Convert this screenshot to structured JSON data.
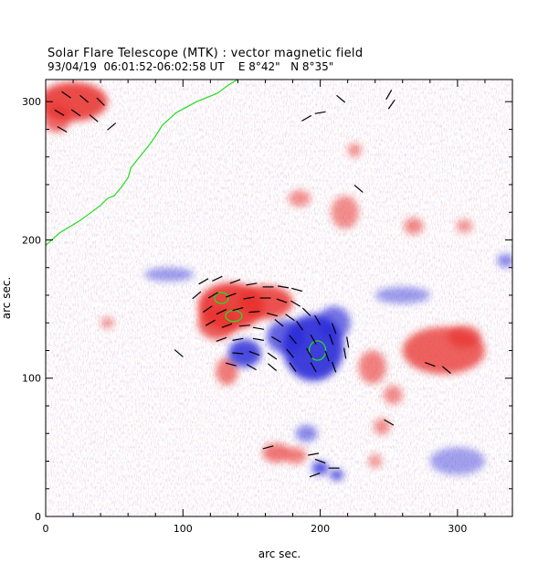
{
  "chart_data": {
    "type": "heatmap",
    "title": "Solar Flare Telescope (MTK) : vector magnetic field",
    "subtitle": "93/04/19  06:01:52-06:02:58 UT    E 8°42\"   N 8°35\"",
    "xlabel": "arc sec.",
    "ylabel": "arc sec.",
    "xlim": [
      0,
      340
    ],
    "ylim": [
      0,
      316
    ],
    "xticks": [
      0,
      100,
      200,
      300
    ],
    "yticks": [
      0,
      100,
      200,
      300
    ],
    "colors": {
      "positive": "#e8322e",
      "negative": "#2a2ad8",
      "contour": "#22dd22",
      "background": "#ffffff"
    },
    "positive_regions": [
      {
        "x": 135,
        "y": 152,
        "rx": 24,
        "ry": 17,
        "level": 1.0
      },
      {
        "x": 160,
        "y": 155,
        "rx": 20,
        "ry": 12,
        "level": 0.9
      },
      {
        "x": 125,
        "y": 140,
        "rx": 14,
        "ry": 12,
        "level": 0.8
      },
      {
        "x": 290,
        "y": 120,
        "rx": 30,
        "ry": 17,
        "level": 0.75
      },
      {
        "x": 305,
        "y": 130,
        "rx": 12,
        "ry": 8,
        "level": 0.6
      },
      {
        "x": 20,
        "y": 300,
        "rx": 25,
        "ry": 14,
        "level": 0.95
      },
      {
        "x": 8,
        "y": 288,
        "rx": 10,
        "ry": 10,
        "level": 0.7
      },
      {
        "x": 132,
        "y": 105,
        "rx": 8,
        "ry": 10,
        "level": 0.5
      },
      {
        "x": 238,
        "y": 108,
        "rx": 10,
        "ry": 12,
        "level": 0.45
      },
      {
        "x": 253,
        "y": 88,
        "rx": 7,
        "ry": 7,
        "level": 0.35
      },
      {
        "x": 245,
        "y": 65,
        "rx": 6,
        "ry": 6,
        "level": 0.35
      },
      {
        "x": 168,
        "y": 46,
        "rx": 10,
        "ry": 7,
        "level": 0.55
      },
      {
        "x": 182,
        "y": 44,
        "rx": 8,
        "ry": 6,
        "level": 0.45
      },
      {
        "x": 218,
        "y": 220,
        "rx": 10,
        "ry": 12,
        "level": 0.35
      },
      {
        "x": 268,
        "y": 210,
        "rx": 7,
        "ry": 6,
        "level": 0.4
      },
      {
        "x": 185,
        "y": 230,
        "rx": 8,
        "ry": 6,
        "level": 0.3
      },
      {
        "x": 225,
        "y": 265,
        "rx": 5,
        "ry": 5,
        "level": 0.3
      },
      {
        "x": 305,
        "y": 210,
        "rx": 6,
        "ry": 5,
        "level": 0.25
      },
      {
        "x": 45,
        "y": 140,
        "rx": 5,
        "ry": 4,
        "level": 0.25
      },
      {
        "x": 240,
        "y": 40,
        "rx": 5,
        "ry": 5,
        "level": 0.25
      }
    ],
    "negative_regions": [
      {
        "x": 195,
        "y": 122,
        "rx": 22,
        "ry": 24,
        "level": 1.0
      },
      {
        "x": 175,
        "y": 130,
        "rx": 14,
        "ry": 12,
        "level": 0.7
      },
      {
        "x": 210,
        "y": 140,
        "rx": 12,
        "ry": 12,
        "level": 0.55
      },
      {
        "x": 145,
        "y": 118,
        "rx": 12,
        "ry": 10,
        "level": 0.9
      },
      {
        "x": 200,
        "y": 35,
        "rx": 6,
        "ry": 5,
        "level": 0.8
      },
      {
        "x": 212,
        "y": 30,
        "rx": 5,
        "ry": 4,
        "level": 0.75
      },
      {
        "x": 190,
        "y": 60,
        "rx": 8,
        "ry": 6,
        "level": 0.35
      },
      {
        "x": 335,
        "y": 185,
        "rx": 6,
        "ry": 5,
        "level": 0.35
      },
      {
        "x": 90,
        "y": 175,
        "rx": 18,
        "ry": 5,
        "level": 0.2
      },
      {
        "x": 260,
        "y": 160,
        "rx": 20,
        "ry": 6,
        "level": 0.2
      },
      {
        "x": 300,
        "y": 40,
        "rx": 20,
        "ry": 10,
        "level": 0.15
      }
    ],
    "contours": [
      {
        "polarity": "positive",
        "x": 128,
        "y": 158,
        "rx": 5,
        "ry": 4
      },
      {
        "polarity": "positive",
        "x": 137,
        "y": 145,
        "rx": 6,
        "ry": 4
      },
      {
        "polarity": "negative",
        "x": 198,
        "y": 120,
        "rx": 6,
        "ry": 7
      },
      {
        "polarity": "limb",
        "points": [
          [
            0,
            196
          ],
          [
            10,
            205
          ],
          [
            25,
            214
          ],
          [
            40,
            225
          ],
          [
            45,
            230
          ],
          [
            50,
            232
          ],
          [
            55,
            238
          ],
          [
            60,
            245
          ],
          [
            62,
            252
          ],
          [
            70,
            262
          ],
          [
            75,
            268
          ],
          [
            80,
            275
          ],
          [
            85,
            283
          ],
          [
            95,
            292
          ],
          [
            110,
            300
          ],
          [
            125,
            306
          ],
          [
            133,
            312
          ],
          [
            140,
            316
          ]
        ]
      }
    ],
    "transverse_field": [
      [
        115,
        170,
        30
      ],
      [
        125,
        172,
        25
      ],
      [
        138,
        170,
        20
      ],
      [
        150,
        168,
        10
      ],
      [
        162,
        166,
        0
      ],
      [
        173,
        166,
        -10
      ],
      [
        183,
        164,
        -15
      ],
      [
        110,
        160,
        40
      ],
      [
        122,
        160,
        30
      ],
      [
        135,
        160,
        20
      ],
      [
        148,
        158,
        10
      ],
      [
        160,
        158,
        0
      ],
      [
        172,
        156,
        -20
      ],
      [
        182,
        154,
        -30
      ],
      [
        118,
        150,
        35
      ],
      [
        128,
        148,
        25
      ],
      [
        140,
        150,
        15
      ],
      [
        152,
        148,
        5
      ],
      [
        165,
        146,
        -15
      ],
      [
        178,
        144,
        -35
      ],
      [
        190,
        148,
        -45
      ],
      [
        120,
        140,
        30
      ],
      [
        132,
        138,
        20
      ],
      [
        145,
        138,
        5
      ],
      [
        155,
        136,
        -10
      ],
      [
        170,
        140,
        -40
      ],
      [
        185,
        138,
        -55
      ],
      [
        198,
        142,
        -60
      ],
      [
        210,
        136,
        -70
      ],
      [
        128,
        128,
        20
      ],
      [
        140,
        128,
        10
      ],
      [
        155,
        128,
        -10
      ],
      [
        168,
        128,
        -30
      ],
      [
        180,
        128,
        -50
      ],
      [
        195,
        128,
        -60
      ],
      [
        208,
        128,
        -70
      ],
      [
        220,
        126,
        -80
      ],
      [
        140,
        118,
        -5
      ],
      [
        152,
        118,
        -20
      ],
      [
        165,
        116,
        -35
      ],
      [
        178,
        118,
        -50
      ],
      [
        192,
        118,
        -60
      ],
      [
        205,
        116,
        -70
      ],
      [
        218,
        118,
        -80
      ],
      [
        135,
        110,
        -15
      ],
      [
        150,
        108,
        -30
      ],
      [
        165,
        108,
        -40
      ],
      [
        180,
        108,
        -55
      ],
      [
        195,
        108,
        -60
      ],
      [
        210,
        108,
        -70
      ],
      [
        15,
        305,
        -35
      ],
      [
        28,
        302,
        -40
      ],
      [
        40,
        300,
        -45
      ],
      [
        10,
        292,
        -30
      ],
      [
        22,
        292,
        -35
      ],
      [
        35,
        288,
        -40
      ],
      [
        12,
        280,
        -30
      ],
      [
        250,
        305,
        60
      ],
      [
        252,
        298,
        55
      ],
      [
        190,
        288,
        30
      ],
      [
        200,
        292,
        10
      ],
      [
        215,
        302,
        -40
      ],
      [
        48,
        282,
        40
      ],
      [
        228,
        237,
        -40
      ],
      [
        97,
        118,
        -40
      ],
      [
        280,
        110,
        -20
      ],
      [
        292,
        106,
        -40
      ],
      [
        250,
        68,
        -30
      ],
      [
        162,
        50,
        15
      ],
      [
        195,
        45,
        10
      ],
      [
        200,
        40,
        -20
      ],
      [
        210,
        35,
        0
      ],
      [
        196,
        30,
        20
      ]
    ]
  }
}
